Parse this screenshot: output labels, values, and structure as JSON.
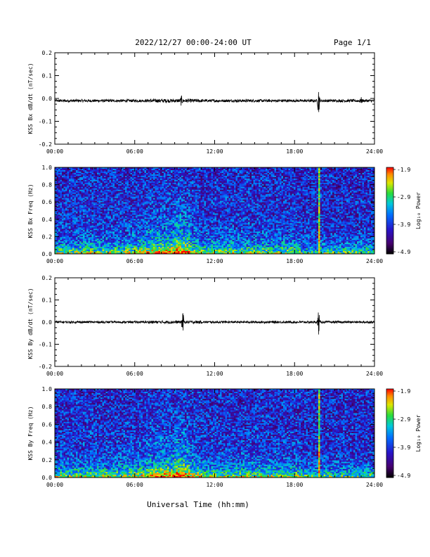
{
  "header": {
    "title": "2022/12/27  00:00-24:00 UT",
    "page": "Page 1/1"
  },
  "xlabel": "Universal Time (hh:mm)",
  "colorbar": {
    "label": "Log₁₀ Power",
    "ticks": [
      "-1.9",
      "-2.9",
      "-3.9",
      "-4.9"
    ],
    "range": [
      -4.9,
      -1.9
    ]
  },
  "colors": {
    "trace": "#000000",
    "burst_line": "#40e080"
  },
  "chart_data": [
    {
      "type": "line",
      "ylabel": "KSS Bx dB/dt (nT/sec)",
      "xlim": [
        0,
        24
      ],
      "ylim": [
        -0.2,
        0.2
      ],
      "xticks": [
        "00:00",
        "06:00",
        "12:00",
        "18:00",
        "24:00"
      ],
      "yticks": [
        "0.2",
        "0.1",
        "0.0",
        "-0.1",
        "-0.2"
      ],
      "baseline": -0.01,
      "noise": 0.006,
      "features": [
        {
          "t": 9.5,
          "amp": 0.012
        },
        {
          "t": 19.8,
          "amp": 0.065
        },
        {
          "t": 23.0,
          "amp": 0.01
        }
      ]
    },
    {
      "type": "heatmap",
      "ylabel": "KSS Bx Freq (Hz)",
      "xlim": [
        0,
        24
      ],
      "ylim": [
        0,
        1.0
      ],
      "xticks": [
        "00:00",
        "06:00",
        "12:00",
        "18:00",
        "24:00"
      ],
      "yticks": [
        "1.0",
        "0.8",
        "0.6",
        "0.4",
        "0.2",
        "0.0"
      ],
      "zlim": [
        -4.9,
        -1.9
      ],
      "burst_times": [
        19.8
      ]
    },
    {
      "type": "line",
      "ylabel": "KSS By dB/dt (nT/sec)",
      "xlim": [
        0,
        24
      ],
      "ylim": [
        -0.2,
        0.2
      ],
      "xticks": [
        "00:00",
        "06:00",
        "12:00",
        "18:00",
        "24:00"
      ],
      "yticks": [
        "0.2",
        "0.1",
        "0.0",
        "-0.1",
        "-0.2"
      ],
      "baseline": 0.0,
      "noise": 0.005,
      "features": [
        {
          "t": 9.6,
          "amp": 0.045
        },
        {
          "t": 19.8,
          "amp": 0.055
        }
      ]
    },
    {
      "type": "heatmap",
      "ylabel": "KSS By Freq (Hz)",
      "xlim": [
        0,
        24
      ],
      "ylim": [
        0,
        1.0
      ],
      "xticks": [
        "00:00",
        "06:00",
        "12:00",
        "18:00",
        "24:00"
      ],
      "yticks": [
        "1.0",
        "0.8",
        "0.6",
        "0.4",
        "0.2",
        "0.0"
      ],
      "zlim": [
        -4.9,
        -1.9
      ],
      "burst_times": [
        19.8
      ]
    }
  ]
}
